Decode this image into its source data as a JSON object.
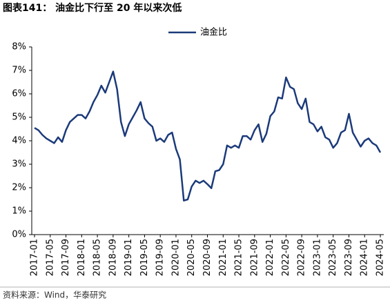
{
  "chart_data": {
    "type": "line",
    "title": "图表141： 油金比下行至 20 年以来次低",
    "source": "资料来源：Wind，华泰研究",
    "categories": [
      "2017-01",
      null,
      null,
      null,
      "2017-05",
      null,
      null,
      null,
      "2017-09",
      null,
      null,
      null,
      "2018-01",
      null,
      null,
      null,
      "2018-05",
      null,
      null,
      null,
      "2018-09",
      null,
      null,
      null,
      "2019-01",
      null,
      null,
      null,
      "2019-05",
      null,
      null,
      null,
      "2019-09",
      null,
      null,
      null,
      "2020-01",
      null,
      null,
      null,
      "2020-05",
      null,
      null,
      null,
      "2020-09",
      null,
      null,
      null,
      "2021-01",
      null,
      null,
      null,
      "2021-05",
      null,
      null,
      null,
      "2021-09",
      null,
      null,
      null,
      "2022-01",
      null,
      null,
      null,
      "2022-05",
      null,
      null,
      null,
      "2022-09",
      null,
      null,
      null,
      "2023-01",
      null,
      null,
      null,
      "2023-05",
      null,
      null,
      null,
      "2023-09",
      null,
      null,
      null,
      "2024-01",
      null,
      null,
      null,
      "2024-05"
    ],
    "series": [
      {
        "name": "油金比",
        "color": "#1b3a7a",
        "values": [
          4.55,
          4.45,
          4.25,
          4.1,
          4.0,
          3.9,
          4.15,
          3.95,
          4.45,
          4.8,
          4.95,
          5.1,
          5.1,
          4.95,
          5.25,
          5.65,
          5.95,
          6.35,
          6.05,
          6.5,
          6.95,
          6.2,
          4.8,
          4.2,
          4.7,
          5.0,
          5.3,
          5.65,
          4.95,
          4.75,
          4.6,
          4.0,
          4.1,
          3.95,
          4.25,
          4.35,
          3.65,
          3.2,
          1.45,
          1.5,
          2.05,
          2.3,
          2.2,
          2.3,
          2.15,
          1.98,
          2.7,
          2.75,
          3.0,
          3.8,
          3.7,
          3.8,
          3.7,
          4.2,
          4.2,
          4.05,
          4.45,
          4.7,
          3.95,
          4.3,
          5.05,
          5.25,
          5.85,
          5.8,
          6.7,
          6.3,
          6.2,
          5.6,
          5.35,
          5.8,
          4.8,
          4.7,
          4.4,
          4.6,
          4.15,
          4.05,
          3.7,
          3.9,
          4.35,
          4.45,
          5.15,
          4.35,
          4.05,
          3.75,
          4.0,
          4.1,
          3.9,
          3.8,
          3.5
        ]
      }
    ],
    "ylim": [
      0,
      8
    ],
    "yticks": [
      {
        "value": 0,
        "label": "0%"
      },
      {
        "value": 1,
        "label": "1%"
      },
      {
        "value": 2,
        "label": "2%"
      },
      {
        "value": 3,
        "label": "3%"
      },
      {
        "value": 4,
        "label": "4%"
      },
      {
        "value": 5,
        "label": "5%"
      },
      {
        "value": 6,
        "label": "6%"
      },
      {
        "value": 7,
        "label": "7%"
      },
      {
        "value": 8,
        "label": "8%"
      }
    ],
    "legend": "top"
  }
}
